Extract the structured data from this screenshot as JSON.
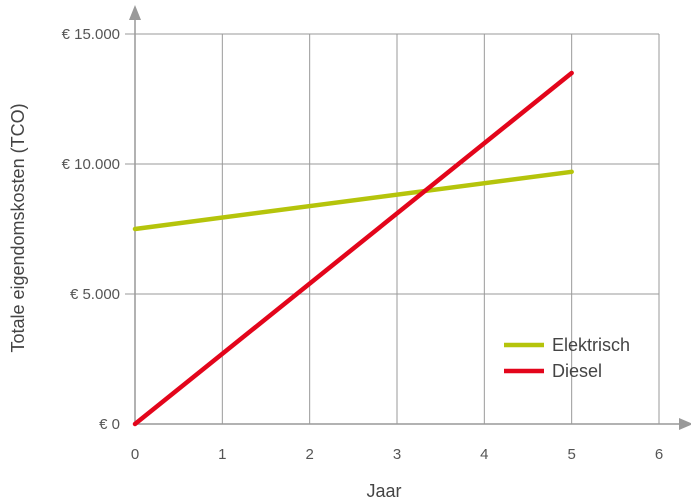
{
  "chart_data": {
    "type": "line",
    "xlabel": "Jaar",
    "ylabel": "Totale eigendomskosten (TCO)",
    "x_ticks": [
      "0",
      "1",
      "2",
      "3",
      "4",
      "5",
      "6"
    ],
    "y_ticks": [
      {
        "value": 0,
        "label": "€ 0"
      },
      {
        "value": 5000,
        "label": "€ 5.000"
      },
      {
        "value": 10000,
        "label": "€ 10.000"
      },
      {
        "value": 15000,
        "label": "€ 15.000"
      }
    ],
    "xlim": [
      0,
      6
    ],
    "ylim": [
      0,
      15000
    ],
    "grid": true,
    "legend_position": "bottom-right",
    "series": [
      {
        "name": "Elektrisch",
        "color": "#b5c40b",
        "x": [
          0,
          5
        ],
        "y": [
          7500,
          9700
        ]
      },
      {
        "name": "Diesel",
        "color": "#e3051b",
        "x": [
          0,
          5
        ],
        "y": [
          0,
          13500
        ]
      }
    ]
  }
}
